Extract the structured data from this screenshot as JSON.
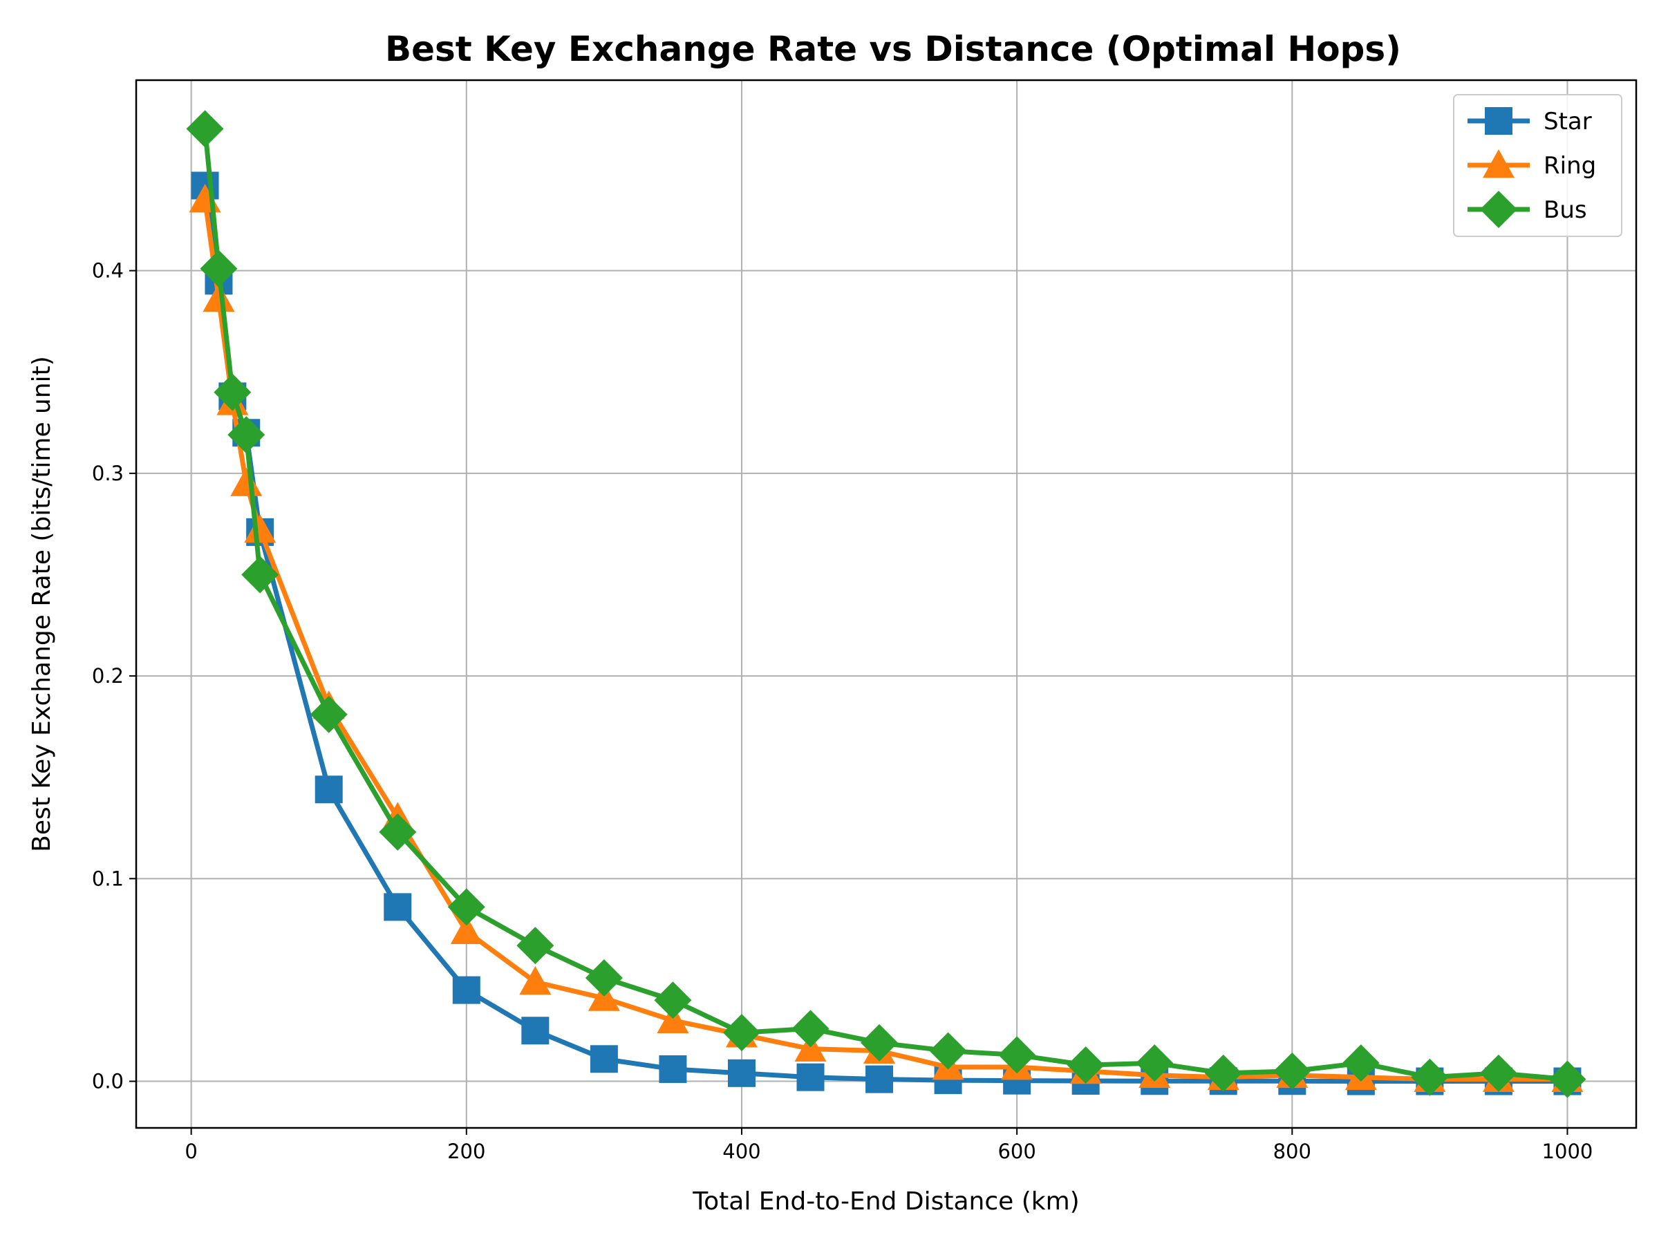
{
  "chart_data": {
    "type": "line",
    "title": "Best Key Exchange Rate vs Distance (Optimal Hops)",
    "xlabel": "Total End-to-End Distance (km)",
    "ylabel": "Best Key Exchange Rate (bits/time unit)",
    "xlim": [
      -40,
      1050
    ],
    "ylim": [
      -0.023,
      0.494
    ],
    "xticks": [
      0,
      200,
      400,
      600,
      800,
      1000
    ],
    "xtick_labels": [
      "0",
      "200",
      "400",
      "600",
      "800",
      "1000"
    ],
    "yticks": [
      0.0,
      0.1,
      0.2,
      0.3,
      0.4
    ],
    "ytick_labels": [
      "0.0",
      "0.1",
      "0.2",
      "0.3",
      "0.4"
    ],
    "grid": true,
    "legend_position": "top-right",
    "x": [
      10,
      20,
      30,
      40,
      50,
      100,
      150,
      200,
      250,
      300,
      350,
      400,
      450,
      500,
      550,
      600,
      650,
      700,
      750,
      800,
      850,
      900,
      950,
      1000
    ],
    "series": [
      {
        "name": "Star",
        "color": "#1f77b4",
        "marker": "square",
        "values": [
          0.442,
          0.395,
          0.338,
          0.32,
          0.271,
          0.144,
          0.086,
          0.045,
          0.025,
          0.011,
          0.006,
          0.004,
          0.002,
          0.001,
          0.0005,
          0.0003,
          0.0002,
          0.0001,
          0.0001,
          0.0001,
          0.0,
          0.0,
          0.0,
          0.0
        ]
      },
      {
        "name": "Ring",
        "color": "#ff7f0e",
        "marker": "triangle",
        "values": [
          0.435,
          0.386,
          0.335,
          0.295,
          0.272,
          0.185,
          0.13,
          0.074,
          0.049,
          0.041,
          0.03,
          0.023,
          0.016,
          0.015,
          0.007,
          0.007,
          0.005,
          0.003,
          0.002,
          0.003,
          0.002,
          0.001,
          0.001,
          0.001
        ]
      },
      {
        "name": "Bus",
        "color": "#2ca02c",
        "marker": "diamond",
        "values": [
          0.47,
          0.401,
          0.34,
          0.319,
          0.25,
          0.181,
          0.123,
          0.086,
          0.067,
          0.051,
          0.04,
          0.024,
          0.026,
          0.019,
          0.015,
          0.013,
          0.008,
          0.009,
          0.004,
          0.005,
          0.009,
          0.002,
          0.004,
          0.001
        ]
      }
    ]
  }
}
